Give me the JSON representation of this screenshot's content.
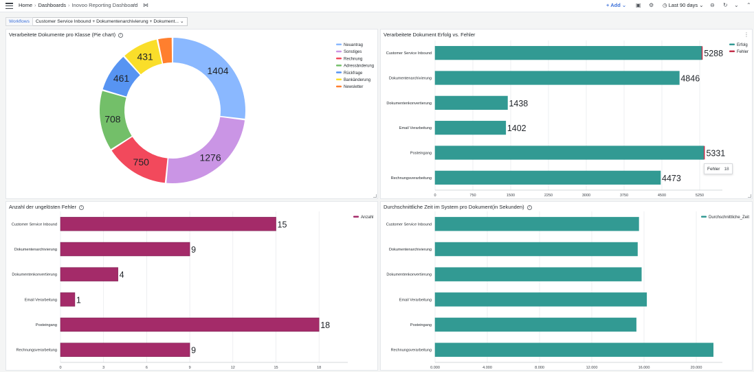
{
  "header": {
    "crumbs": [
      "Home",
      "Dashboards",
      "Inovoo Reporting Dashboard"
    ],
    "add_label": "Add",
    "time_range": "Last 90 days"
  },
  "variables": {
    "label": "Workflows",
    "value": "Customer Service Inbound + Dokumentenarchivierung + Dokument..."
  },
  "colors": {
    "teal": "#329a93",
    "magenta": "#a42b69",
    "fehler": "#c4314b"
  },
  "panels": {
    "pie": {
      "title": "Verarbeitete Dokumente pro Klasse (Pie chart)"
    },
    "success": {
      "title": "Verarbeitete Dokument Erfolg vs. Fehler"
    },
    "errors": {
      "title": "Anzahl der ungelösten Fehler"
    },
    "time": {
      "title": "Durchschnittliche Zeit im System pro Dokument(in Sekunden)"
    }
  },
  "tooltip": {
    "label": "Fehler",
    "value": "18"
  },
  "chart_data": [
    {
      "type": "pie",
      "donut": true,
      "title": "Verarbeitete Dokumente pro Klasse (Pie chart)",
      "legend_position": "top-right",
      "slices": [
        {
          "label": "Neuantrag",
          "value": 1404,
          "color": "#8ab8ff"
        },
        {
          "label": "Sonstiges",
          "value": 1276,
          "color": "#ca95e5"
        },
        {
          "label": "Rechnung",
          "value": 750,
          "color": "#f2495c"
        },
        {
          "label": "Adressänderung",
          "value": 708,
          "color": "#73bf69"
        },
        {
          "label": "Rückfrage",
          "value": 461,
          "color": "#5794f2"
        },
        {
          "label": "Bankänderung",
          "value": 431,
          "color": "#fade2a"
        },
        {
          "label": "Newsletter",
          "value": 174,
          "color": "#ff7f2e"
        }
      ]
    },
    {
      "type": "bar",
      "orientation": "horizontal",
      "title": "Verarbeitete Dokument Erfolg vs. Fehler",
      "categories": [
        "Customer Service Inbound",
        "Dokumentenarchivierung",
        "Dokumentenkonvertierung",
        "Email Verarbeitung",
        "Posteingang",
        "Rechnungsverarbeitung"
      ],
      "series": [
        {
          "name": "Erfolg",
          "values": [
            5288,
            4846,
            1438,
            1402,
            5331,
            4473
          ],
          "color": "#329a93"
        },
        {
          "name": "Fehler",
          "values": [
            15,
            0,
            0,
            0,
            18,
            0
          ],
          "color": "#c4314b"
        }
      ],
      "x_ticks": [
        "0",
        "750",
        "1500",
        "2250",
        "3000",
        "3750",
        "4500",
        "5250"
      ],
      "xlim": [
        0,
        5700
      ],
      "legend_position": "top-right"
    },
    {
      "type": "bar",
      "orientation": "horizontal",
      "title": "Anzahl der ungelösten Fehler",
      "categories": [
        "Customer Service Inbound",
        "Dokumentenarchivierung",
        "Dokumentenkonvertierung",
        "Email Verarbeitung",
        "Posteingang",
        "Rechnungsverarbeitung"
      ],
      "series": [
        {
          "name": "Anzahl",
          "values": [
            15,
            9,
            4,
            1,
            18,
            9
          ],
          "color": "#a42b69"
        }
      ],
      "x_ticks": [
        "0",
        "3",
        "6",
        "9",
        "12",
        "15",
        "18"
      ],
      "xlim": [
        0,
        20
      ],
      "legend_position": "top-right"
    },
    {
      "type": "bar",
      "orientation": "horizontal",
      "title": "Durchschnittliche Zeit im System pro Dokument(in Sekunden)",
      "categories": [
        "Customer Service Inbound",
        "Dokumentenarchivierung",
        "Dokumentenkonvertierung",
        "Email Verarbeitung",
        "Posteingang",
        "Rechnungsverarbeitung"
      ],
      "series": [
        {
          "name": "Durchschnittliche_Zeit",
          "values": [
            15600,
            15500,
            15800,
            16200,
            15400,
            21300
          ],
          "color": "#329a93"
        }
      ],
      "x_ticks": [
        "0.000",
        "4.000",
        "8.000",
        "12.000",
        "16.000",
        "20.000"
      ],
      "xlim": [
        0,
        22000
      ],
      "legend_position": "top-right"
    }
  ]
}
